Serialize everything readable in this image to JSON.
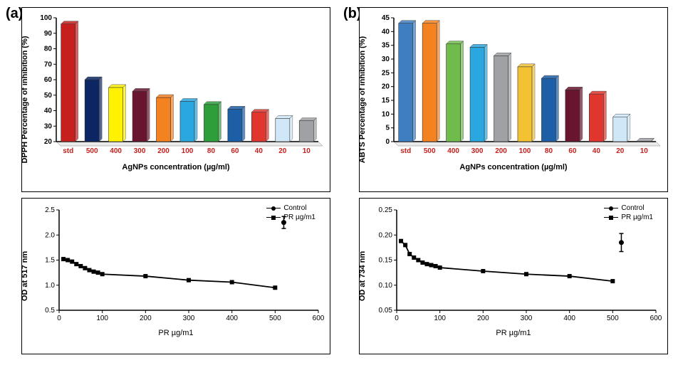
{
  "panel_a": {
    "label": "(a)",
    "bar_chart": {
      "type": "bar",
      "ylabel": "DPPH Percentage of inhibition (%)",
      "xlabel": "AgNPs concentration (µg/ml)",
      "categories": [
        "std",
        "500",
        "400",
        "300",
        "200",
        "100",
        "80",
        "60",
        "40",
        "20",
        "10"
      ],
      "values": [
        96,
        60,
        55,
        52.5,
        48.5,
        46,
        44,
        41,
        39,
        35,
        33.5
      ],
      "bar_colors": [
        "#c5201d",
        "#0b2663",
        "#fef200",
        "#6a1530",
        "#f58220",
        "#2aa7df",
        "#2e9e3b",
        "#1d5fa6",
        "#e0362e",
        "#cfe7f6",
        "#9fa1a4"
      ],
      "ylim": [
        20,
        100
      ],
      "ytick_step": 10,
      "xtick_color": "#c5201d",
      "label_fontsize": 11,
      "tick_fontsize": 10,
      "background_color": "#ffffff",
      "bar_width": 0.6
    },
    "line_chart": {
      "type": "line+scatter",
      "ylabel": "OD at 517 nm",
      "xlabel": "PR µg/m1",
      "series": [
        {
          "name": "PR µg/m1",
          "marker": "square",
          "x": [
            10,
            20,
            30,
            40,
            50,
            60,
            70,
            80,
            90,
            100,
            200,
            300,
            400,
            500
          ],
          "y": [
            1.52,
            1.5,
            1.47,
            1.42,
            1.38,
            1.34,
            1.3,
            1.27,
            1.25,
            1.22,
            1.18,
            1.1,
            1.06,
            0.95
          ]
        },
        {
          "name": "Control",
          "marker": "circle",
          "x": [
            520
          ],
          "y": [
            2.25
          ],
          "err": 0.12
        }
      ],
      "xlim": [
        0,
        600
      ],
      "ylim": [
        0.5,
        2.5
      ],
      "xtick_step": 100,
      "ytick_step": 0.5,
      "line_color": "#000000",
      "marker_color": "#000000",
      "label_fontsize": 11,
      "tick_fontsize": 10
    }
  },
  "panel_b": {
    "label": "(b)",
    "bar_chart": {
      "type": "bar",
      "ylabel": "ABTS  Percentage of inhibition (%)",
      "xlabel": "AgNPs concentration (µg/ml)",
      "categories": [
        "std",
        "500",
        "400",
        "300",
        "200",
        "100",
        "80",
        "60",
        "40",
        "20",
        "10"
      ],
      "values": [
        43,
        43,
        35.5,
        34.3,
        31.2,
        27.2,
        23,
        18.8,
        17.3,
        9,
        0.2
      ],
      "bar_colors": [
        "#3f7fc1",
        "#f58220",
        "#6fbb4b",
        "#2aa7df",
        "#9fa1a4",
        "#f2c233",
        "#1d5fa6",
        "#6a1530",
        "#e0362e",
        "#cfe7f6",
        "#9fa1a4"
      ],
      "ylim": [
        0,
        45
      ],
      "ytick_step": 5,
      "xtick_color": "#c5201d",
      "label_fontsize": 11,
      "tick_fontsize": 10,
      "background_color": "#ffffff",
      "bar_width": 0.6
    },
    "line_chart": {
      "type": "line+scatter",
      "ylabel": "OD at 734 nm",
      "xlabel": "PR µg/m1",
      "series": [
        {
          "name": "PR µg/m1",
          "marker": "square",
          "x": [
            10,
            20,
            30,
            40,
            50,
            60,
            70,
            80,
            90,
            100,
            200,
            300,
            400,
            500
          ],
          "y": [
            0.188,
            0.18,
            0.162,
            0.155,
            0.15,
            0.145,
            0.142,
            0.14,
            0.138,
            0.135,
            0.128,
            0.122,
            0.118,
            0.108
          ]
        },
        {
          "name": "Control",
          "marker": "circle",
          "x": [
            520
          ],
          "y": [
            0.185
          ],
          "err": 0.018
        }
      ],
      "xlim": [
        0,
        600
      ],
      "ylim": [
        0.05,
        0.25
      ],
      "xtick_step": 100,
      "ytick_step": 0.05,
      "line_color": "#000000",
      "marker_color": "#000000",
      "label_fontsize": 11,
      "tick_fontsize": 10
    }
  },
  "legend": {
    "control": "Control",
    "pr": "PR µg/m1"
  }
}
